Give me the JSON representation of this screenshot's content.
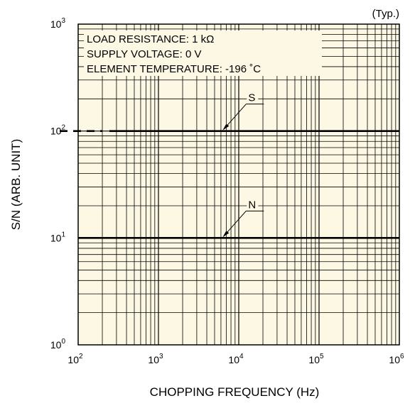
{
  "chart_data": {
    "type": "line",
    "title": "",
    "note": "(Typ.)",
    "xlabel": "CHOPPING FREQUENCY (Hz)",
    "ylabel": "S/N (ARB. UNIT)",
    "x_scale": "log",
    "y_scale": "log",
    "xlim": [
      100,
      1000000
    ],
    "ylim": [
      1,
      1000
    ],
    "grid": true,
    "x_ticks": [
      {
        "base": "10",
        "exp": "2",
        "value": 100
      },
      {
        "base": "10",
        "exp": "3",
        "value": 1000
      },
      {
        "base": "10",
        "exp": "4",
        "value": 10000
      },
      {
        "base": "10",
        "exp": "5",
        "value": 100000
      },
      {
        "base": "10",
        "exp": "6",
        "value": 1000000
      }
    ],
    "y_ticks": [
      {
        "base": "10",
        "exp": "0",
        "value": 1
      },
      {
        "base": "10",
        "exp": "1",
        "value": 10
      },
      {
        "base": "10",
        "exp": "2",
        "value": 100
      },
      {
        "base": "10",
        "exp": "3",
        "value": 1000
      }
    ],
    "conditions": [
      "LOAD RESISTANCE: 1 kΩ",
      "SUPPLY VOLTAGE: 0 V",
      "ELEMENT TEMPERATURE: -196 ˚C"
    ],
    "series": [
      {
        "name": "S",
        "x": [
          100,
          1000000
        ],
        "y": [
          100,
          100
        ],
        "dashed_until_x": 200,
        "label_at_x": 6300
      },
      {
        "name": "N",
        "x": [
          100,
          1000000
        ],
        "y": [
          10,
          10
        ],
        "label_at_x": 6300
      }
    ],
    "colors": {
      "plot_background": "#fdf8e4",
      "grid": "#000000",
      "line": "#000000"
    }
  }
}
